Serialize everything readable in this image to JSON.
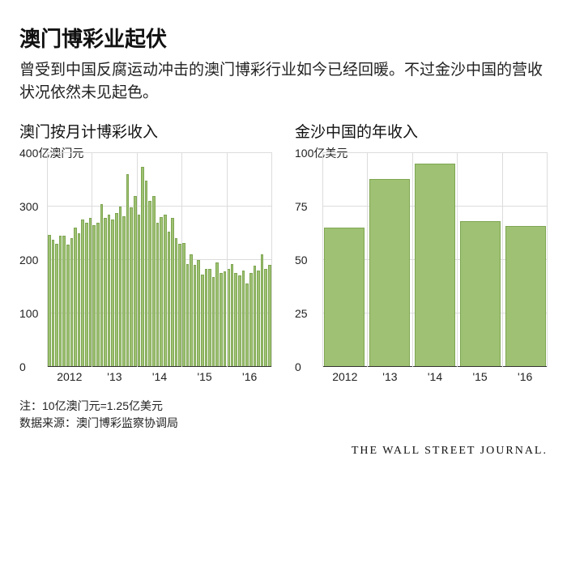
{
  "title": "澳门博彩业起伏",
  "subtitle": "曾受到中国反腐运动冲击的澳门博彩行业如今已经回暖。不过金沙中国的营收状况依然未见起色。",
  "left_chart": {
    "type": "bar",
    "title": "澳门按月计博彩收入",
    "unit_label": "400亿澳门元",
    "ymin": 0,
    "ymax": 400,
    "yticks": [
      0,
      100,
      200,
      300
    ],
    "ytop": 400,
    "bar_color": "#9ec173",
    "bar_border": "#7fa652",
    "grid_color": "#dcdcdc",
    "xgroups": [
      "2012",
      "'13",
      "'14",
      "'15",
      "'16"
    ],
    "values": [
      247,
      238,
      230,
      245,
      245,
      228,
      240,
      260,
      250,
      275,
      270,
      278,
      265,
      270,
      305,
      278,
      285,
      275,
      288,
      300,
      282,
      360,
      298,
      320,
      285,
      375,
      348,
      310,
      320,
      270,
      280,
      285,
      252,
      278,
      240,
      230,
      232,
      192,
      210,
      190,
      200,
      172,
      182,
      182,
      168,
      195,
      175,
      178,
      182,
      192,
      175,
      170,
      180,
      155,
      175,
      188,
      180,
      210,
      182,
      190
    ]
  },
  "right_chart": {
    "type": "bar",
    "title": "金沙中国的年收入",
    "unit_label": "100亿美元",
    "ymin": 0,
    "ymax": 100,
    "yticks": [
      0,
      25,
      50,
      75
    ],
    "ytop": 100,
    "bar_color": "#9ec173",
    "bar_border": "#7fa652",
    "grid_color": "#dcdcdc",
    "categories": [
      "2012",
      "'13",
      "'14",
      "'15",
      "'16"
    ],
    "values": [
      65,
      88,
      95,
      68,
      66
    ]
  },
  "footer_note1": "注：10亿澳门元=1.25亿美元",
  "footer_note2": "数据来源：澳门博彩监察协调局",
  "credit": "THE WALL STREET JOURNAL."
}
